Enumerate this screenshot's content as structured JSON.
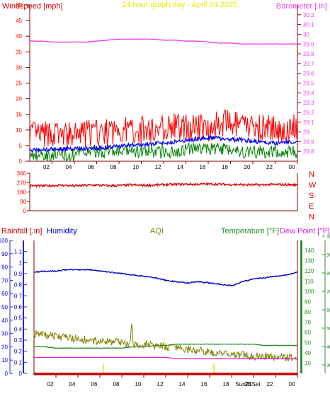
{
  "colors": {
    "background": "#ffffff",
    "axis_dark": "#800000",
    "wind_red": "#ff0000",
    "wind_blue": "#0000ff",
    "wind_green": "#008000",
    "barometer": "#ee44ee",
    "title_yellow": "#e8e800",
    "direction": "#e00000",
    "rain_red": "#cc0000",
    "humidity": "#0000cc",
    "aqi": "#808000",
    "temperature": "#228b22",
    "dew_point": "#e020e0",
    "rain_marker": "#e8d800",
    "rain_axis_blue": "#2222ee",
    "green_axis": "#3a8a3a"
  },
  "chart_data": [
    {
      "type": "line",
      "title": "24 hour graph day - April 24 2025",
      "left_axis_label": "Windspeed [mph]",
      "right_axis_label": "Barometer [.in]",
      "x_ticks": [
        "02",
        "04",
        "06",
        "08",
        "10",
        "12",
        "14",
        "16",
        "18",
        "20",
        "22",
        "00"
      ],
      "left_ylim": [
        0,
        50
      ],
      "left_ticks": [
        "0",
        "5",
        "10",
        "15",
        "20",
        "25",
        "30",
        "35",
        "40",
        "45",
        "50"
      ],
      "right_ylim": [
        28.7,
        30.3
      ],
      "right_ticks": [
        "28.8",
        "28.9",
        "29",
        "29.1",
        "29.2",
        "29.3",
        "29.4",
        "29.5",
        "29.6",
        "29.7",
        "29.8",
        "29.9",
        "30",
        "30.1",
        "30.2"
      ],
      "series": [
        {
          "key": "gust",
          "values": [
            9,
            8,
            9,
            8,
            8,
            9,
            9,
            9,
            10,
            10,
            10,
            10,
            11,
            11,
            11,
            11,
            11,
            12,
            12,
            11,
            11,
            11,
            10,
            10,
            11
          ]
        },
        {
          "key": "average",
          "values": [
            3.5,
            3.6,
            3.8,
            3.9,
            4.0,
            4.1,
            4.3,
            4.5,
            4.9,
            5.1,
            5.2,
            5.6,
            5.8,
            6.2,
            6.6,
            7.2,
            7.5,
            7.4,
            7.0,
            6.8,
            6.5,
            6.0,
            5.8,
            6.1,
            6.3
          ]
        },
        {
          "key": "low",
          "values": [
            2,
            2,
            2,
            2,
            2,
            3,
            3,
            3,
            3,
            3,
            3,
            3,
            3,
            3,
            4,
            4,
            4,
            4,
            4,
            3,
            3,
            3,
            3,
            3,
            3
          ]
        },
        {
          "key": "barometer",
          "values": [
            29.93,
            29.93,
            29.92,
            29.92,
            29.92,
            29.92,
            29.93,
            29.94,
            29.95,
            29.95,
            29.95,
            29.95,
            29.94,
            29.94,
            29.93,
            29.93,
            29.92,
            29.91,
            29.91,
            29.9,
            29.9,
            29.9,
            29.9,
            29.9,
            29.9
          ]
        }
      ],
      "grid": false
    },
    {
      "type": "scatter",
      "x_ticks": [
        "02",
        "04",
        "06",
        "08",
        "10",
        "12",
        "14",
        "16",
        "18",
        "20",
        "22",
        "00"
      ],
      "ylim": [
        0,
        360
      ],
      "y_ticks": [
        "0",
        "90",
        "180",
        "270",
        "360"
      ],
      "direction_labels": [
        "N",
        "W",
        "S",
        "E",
        "N"
      ],
      "series": [
        {
          "key": "wind_direction",
          "values": [
            240,
            238,
            242,
            245,
            238,
            244,
            246,
            240,
            242,
            248,
            244,
            246,
            250,
            252,
            255,
            254,
            256,
            254,
            252,
            250,
            248,
            250,
            252,
            250,
            248
          ]
        }
      ]
    },
    {
      "type": "line",
      "labels": {
        "rainfall": "Rainfall [.in]",
        "humidity": "Humidity",
        "aqi": "AQI",
        "temperature": "Temperature [°F]",
        "dew_point": "Dew Point [°F]"
      },
      "x_ticks": [
        "02",
        "04",
        "06",
        "08",
        "10",
        "12",
        "14",
        "16",
        "18",
        "20",
        "22",
        "00"
      ],
      "x_annotation": "Sun25Set",
      "rain_ylim": [
        0,
        1.2
      ],
      "rain_ticks": [
        "0",
        "0.1",
        "0.2",
        "0.3",
        "0.4",
        "0.5",
        "0.6",
        "0.7",
        "0.8",
        "0.9",
        "1",
        "1.1"
      ],
      "percent_ylim": [
        0,
        100
      ],
      "percent_ticks": [
        "0",
        "10",
        "20",
        "30",
        "40",
        "50",
        "60",
        "70",
        "80",
        "90",
        "100"
      ],
      "temp_ticks": [
        "30",
        "40",
        "50",
        "60",
        "70",
        "80",
        "90",
        "100",
        "110",
        "120",
        "130",
        "140"
      ],
      "aqi_ticks": [
        "30",
        "40",
        "50",
        "60",
        "70",
        "80",
        "90",
        "100"
      ],
      "series": [
        {
          "key": "humidity",
          "values": [
            76,
            77,
            77,
            78,
            78,
            78,
            77,
            76,
            75,
            74,
            73,
            72,
            70,
            69,
            68,
            69,
            68,
            67,
            66,
            69,
            71,
            72,
            73,
            74,
            76
          ]
        },
        {
          "key": "aqi",
          "values": [
            30,
            29,
            28,
            27,
            26,
            25,
            24,
            24,
            23,
            22,
            22,
            21,
            20,
            19,
            18,
            17,
            16,
            15,
            14,
            14,
            13,
            13,
            12,
            12,
            12
          ]
        },
        {
          "key": "temperature",
          "values": [
            20,
            20,
            19,
            19,
            19,
            19,
            19,
            19,
            19,
            20,
            20,
            21,
            21,
            22,
            22,
            22,
            22,
            22,
            22,
            22,
            22,
            21,
            21,
            21,
            21
          ]
        },
        {
          "key": "dew_point",
          "values": [
            12,
            12,
            12,
            12,
            12,
            12,
            12,
            12,
            12,
            12,
            12,
            12,
            12,
            11,
            11,
            11,
            11,
            11,
            11,
            11,
            11,
            11,
            11,
            11,
            11
          ]
        },
        {
          "key": "rainfall",
          "values": [
            0,
            0,
            0,
            0,
            0,
            0,
            0,
            0,
            0,
            0,
            0,
            0,
            0,
            0,
            0,
            0,
            0,
            0,
            0,
            0,
            0,
            0,
            0,
            0,
            0
          ]
        }
      ],
      "aqi_spike": {
        "hour": 8.9,
        "value": 38
      }
    }
  ]
}
